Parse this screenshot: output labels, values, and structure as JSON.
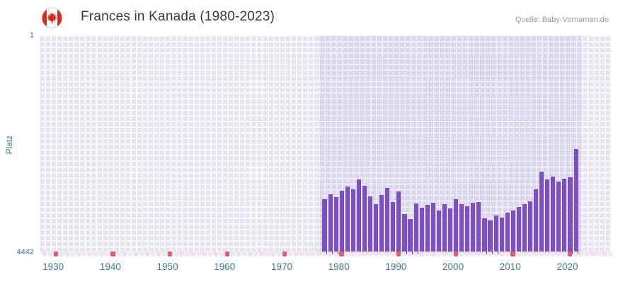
{
  "header": {
    "title": "Frances in Kanada (1980-2023)",
    "source": "Quelle: Baby-Vornamen.de"
  },
  "colors": {
    "plot_bg": "#e7e4f2",
    "band": "rgba(113,95,175,0.10)",
    "bar": "#7b51c1",
    "axis_text": "#3d7d8e",
    "title_text": "#3a3a3a",
    "source_text": "#9b9b9b",
    "strip_red": "#e05f6b",
    "strip_pink": "#f5dfe9",
    "strip_lavender": "#efe8f4",
    "grid_line": "#ffffff"
  },
  "chart_data": {
    "type": "bar",
    "title": "Frances in Kanada (1980-2023)",
    "source": "Quelle: Baby-Vornamen.de",
    "xlabel": "",
    "ylabel": "Platz",
    "grid": true,
    "legend": false,
    "y_axis": {
      "min": 1,
      "max": 4442,
      "inverted": true,
      "tick_top": "1",
      "tick_bottom": "4442"
    },
    "x_axis": {
      "min": 1927.5,
      "max": 2027.5,
      "ticks": [
        1930,
        1940,
        1950,
        1960,
        1970,
        1980,
        1990,
        2000,
        2010,
        2020
      ]
    },
    "plot_band": {
      "from": 1976.5,
      "to": 2022.5
    },
    "marker_strip": {
      "from": 1928,
      "to": 2027,
      "red_every": 10
    },
    "series": [
      {
        "name": "Platz",
        "years": [
          1977,
          1978,
          1979,
          1980,
          1981,
          1982,
          1983,
          1984,
          1985,
          1986,
          1987,
          1988,
          1989,
          1990,
          1991,
          1992,
          1993,
          1994,
          1995,
          1996,
          1997,
          1998,
          1999,
          2000,
          2001,
          2002,
          2003,
          2004,
          2005,
          2006,
          2007,
          2008,
          2009,
          2010,
          2011,
          2012,
          2013,
          2014,
          2015,
          2016,
          2017,
          2018,
          2019,
          2020,
          2021
        ],
        "values": [
          3320,
          3220,
          3280,
          3150,
          3070,
          3130,
          2920,
          3050,
          3270,
          3430,
          3240,
          3100,
          3380,
          3160,
          3630,
          3720,
          3410,
          3490,
          3440,
          3390,
          3560,
          3420,
          3510,
          3330,
          3430,
          3470,
          3400,
          3380,
          3710,
          3760,
          3650,
          3690,
          3590,
          3560,
          3480,
          3430,
          3370,
          3120,
          2760,
          2930,
          2870,
          2960,
          2910,
          2880,
          2310
        ]
      }
    ]
  }
}
